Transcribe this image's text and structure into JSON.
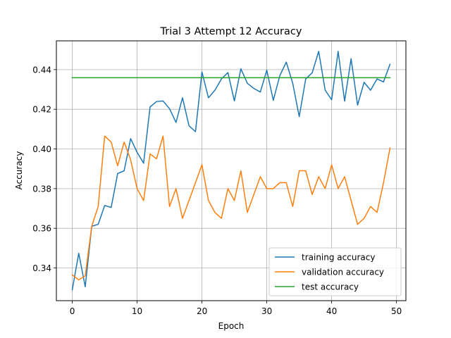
{
  "chart_data": {
    "type": "line",
    "title": "Trial 3 Attempt 12 Accuracy",
    "xlabel": "Epoch",
    "ylabel": "Accuracy",
    "xlim": [
      -2.45,
      51.45
    ],
    "ylim": [
      0.3235,
      0.4545
    ],
    "xticks": [
      0,
      10,
      20,
      30,
      40,
      50
    ],
    "yticks": [
      0.34,
      0.36,
      0.38,
      0.4,
      0.42,
      0.44
    ],
    "ytick_labels": [
      "0.34",
      "0.36",
      "0.38",
      "0.40",
      "0.42",
      "0.44"
    ],
    "grid": true,
    "legend_position": "lower-right",
    "x": [
      0,
      1,
      2,
      3,
      4,
      5,
      6,
      7,
      8,
      9,
      10,
      11,
      12,
      13,
      14,
      15,
      16,
      17,
      18,
      19,
      20,
      21,
      22,
      23,
      24,
      25,
      26,
      27,
      28,
      29,
      30,
      31,
      32,
      33,
      34,
      35,
      36,
      37,
      38,
      39,
      40,
      41,
      42,
      43,
      44,
      45,
      46,
      47,
      48,
      49
    ],
    "series": [
      {
        "name": "training accuracy",
        "color": "#1f77b4",
        "values": [
          0.329,
          0.3474,
          0.3305,
          0.361,
          0.362,
          0.3715,
          0.3705,
          0.3876,
          0.389,
          0.4052,
          0.3983,
          0.3928,
          0.4212,
          0.4239,
          0.4242,
          0.4203,
          0.4134,
          0.4258,
          0.4117,
          0.4087,
          0.4388,
          0.4258,
          0.4296,
          0.4353,
          0.4385,
          0.4242,
          0.4404,
          0.4331,
          0.4305,
          0.4287,
          0.4397,
          0.4245,
          0.4369,
          0.4438,
          0.4331,
          0.4163,
          0.4353,
          0.4384,
          0.4492,
          0.4296,
          0.4248,
          0.4492,
          0.4241,
          0.4455,
          0.4221,
          0.4336,
          0.4296,
          0.4353,
          0.4338,
          0.4427
        ]
      },
      {
        "name": "validation accuracy",
        "color": "#ff7f0e",
        "values": [
          0.3365,
          0.334,
          0.336,
          0.361,
          0.371,
          0.4065,
          0.4035,
          0.3915,
          0.4035,
          0.3945,
          0.38,
          0.374,
          0.3975,
          0.395,
          0.4065,
          0.371,
          0.38,
          0.365,
          0.374,
          0.383,
          0.392,
          0.374,
          0.368,
          0.365,
          0.38,
          0.374,
          0.389,
          0.368,
          0.377,
          0.386,
          0.38,
          0.38,
          0.383,
          0.383,
          0.371,
          0.389,
          0.389,
          0.377,
          0.386,
          0.38,
          0.392,
          0.38,
          0.386,
          0.374,
          0.362,
          0.365,
          0.371,
          0.368,
          0.383,
          0.4005
        ]
      },
      {
        "name": "test accuracy",
        "color": "#2ca02c",
        "values": [
          0.4359,
          0.4359,
          0.4359,
          0.4359,
          0.4359,
          0.4359,
          0.4359,
          0.4359,
          0.4359,
          0.4359,
          0.4359,
          0.4359,
          0.4359,
          0.4359,
          0.4359,
          0.4359,
          0.4359,
          0.4359,
          0.4359,
          0.4359,
          0.4359,
          0.4359,
          0.4359,
          0.4359,
          0.4359,
          0.4359,
          0.4359,
          0.4359,
          0.4359,
          0.4359,
          0.4359,
          0.4359,
          0.4359,
          0.4359,
          0.4359,
          0.4359,
          0.4359,
          0.4359,
          0.4359,
          0.4359,
          0.4359,
          0.4359,
          0.4359,
          0.4359,
          0.4359,
          0.4359,
          0.4359,
          0.4359,
          0.4359,
          0.4359
        ]
      }
    ]
  }
}
